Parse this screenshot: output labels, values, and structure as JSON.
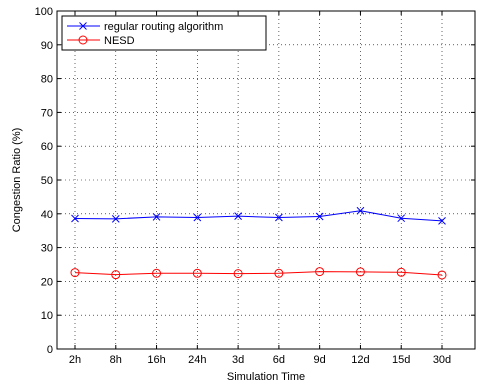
{
  "chart_data": {
    "type": "line",
    "title": "",
    "xlabel": "Simulation Time",
    "ylabel": "Congestion Ratio (%)",
    "categories": [
      "2h",
      "8h",
      "16h",
      "24h",
      "3d",
      "6d",
      "9d",
      "12d",
      "15d",
      "30d"
    ],
    "ylim": [
      0,
      100
    ],
    "yticks": [
      "0",
      "10",
      "20",
      "30",
      "40",
      "50",
      "60",
      "70",
      "80",
      "90",
      "100"
    ],
    "grid": true,
    "legend_position": "top-left",
    "series": [
      {
        "name": "regular routing algorithm",
        "color": "#0000ff",
        "marker": "x",
        "values": [
          38.6,
          38.5,
          39.1,
          38.9,
          39.3,
          38.9,
          39.2,
          40.9,
          38.7,
          37.9
        ]
      },
      {
        "name": "NESD",
        "color": "#ff0000",
        "marker": "o",
        "values": [
          22.6,
          22.0,
          22.4,
          22.4,
          22.3,
          22.4,
          22.9,
          22.8,
          22.7,
          21.9
        ]
      }
    ]
  }
}
